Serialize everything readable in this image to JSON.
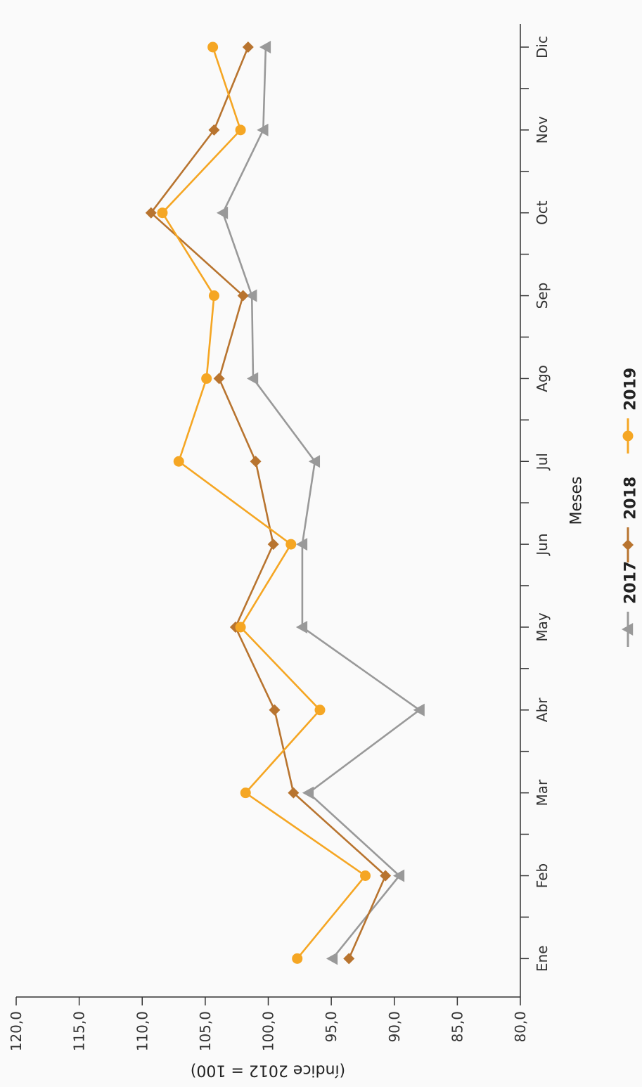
{
  "chart_data": {
    "type": "line",
    "orientation": "rotated-90",
    "categories": [
      "Ene",
      "Feb",
      "Mar",
      "Abr",
      "May",
      "Jun",
      "Jul",
      "Ago",
      "Sep",
      "Oct",
      "Nov",
      "Dic"
    ],
    "x_title": "Meses",
    "y_title": "(índice 2012 = 100)",
    "y_ticks": [
      "80,0",
      "85,0",
      "90,0",
      "95,0",
      "100,0",
      "105,0",
      "110,0",
      "115,0",
      "120,0"
    ],
    "ylim": [
      80,
      120
    ],
    "grid": false,
    "legend_position": "bottom",
    "series": [
      {
        "name": "2017",
        "marker": "triangle",
        "color": "#999999",
        "values": [
          94.9,
          89.6,
          96.8,
          88.0,
          97.3,
          97.3,
          96.3,
          101.2,
          101.3,
          103.6,
          100.4,
          100.2
        ]
      },
      {
        "name": "2018",
        "marker": "diamond",
        "color": "#b8742f",
        "values": [
          93.6,
          90.7,
          98.0,
          99.5,
          102.6,
          99.6,
          101.0,
          103.9,
          102.0,
          109.3,
          104.3,
          101.6
        ]
      },
      {
        "name": "2019",
        "marker": "circle",
        "color": "#f5a623",
        "values": [
          97.7,
          92.3,
          101.8,
          95.9,
          102.2,
          98.2,
          107.1,
          104.9,
          104.3,
          108.4,
          102.2,
          104.4
        ]
      }
    ]
  }
}
